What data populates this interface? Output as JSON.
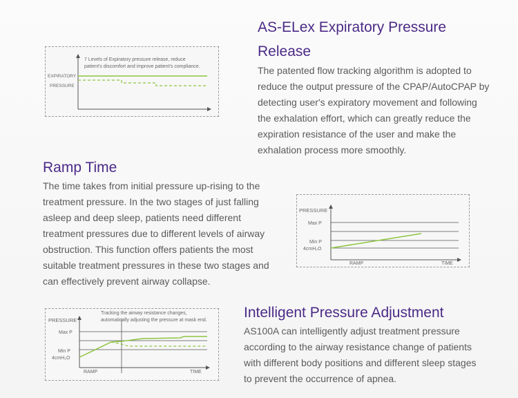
{
  "section1": {
    "title": "AS-ELex Expiratory Pressure Release",
    "body": "The patented flow tracking algorithm is adopted to reduce the output pressure of the CPAP/AutoCPAP by detecting user's expiratory movement and following the exhalation effort, which can greatly reduce the expiration resistance of the user and make the exhalation process more smoothly.",
    "figure": {
      "caption_line1": "7 Levels of Expiratory pressure release, reduce",
      "caption_line2": "patient's discomfort and improve patient's compliance.",
      "ylabel_line1": "EXPIRATORY",
      "ylabel_line2": "PRESSURE"
    }
  },
  "section2": {
    "title": "Ramp Time",
    "body": "The time takes from initial pressure up-rising to the treatment pressure. In the two stages of just falling asleep and deep sleep, patients need different treatment pressures due to different levels of airway obstruction. This function offers patients the most suitable treatment pressures in these two stages and can effectively prevent airway collapse.",
    "figure": {
      "ylabel": "PRESSURE",
      "max_label": "Max P",
      "min_label": "Min P",
      "min_value": "4cmH₂O",
      "x_ramp": "RAMP",
      "x_time": "TIME"
    }
  },
  "section3": {
    "title": "Intelligent Pressure Adjustment",
    "body": "AS100A can intelligently adjust treatment pressure according to the airway resistance change of patients with different body positions and different sleep stages to prevent the occurrence of apnea.",
    "figure": {
      "caption_line1": "Tracking the airway resistance changes,",
      "caption_line2": "automatically adjusting the pressure at mask end.",
      "ylabel": "PRESSURE",
      "max_label": "Max P",
      "min_label": "Min P",
      "min_value": "4cmH₂O",
      "x_ramp": "RAMP",
      "x_time": "TIME"
    }
  },
  "colors": {
    "title": "#4b2a86",
    "body": "#5a5a5a",
    "curve": "#8cc63f"
  }
}
